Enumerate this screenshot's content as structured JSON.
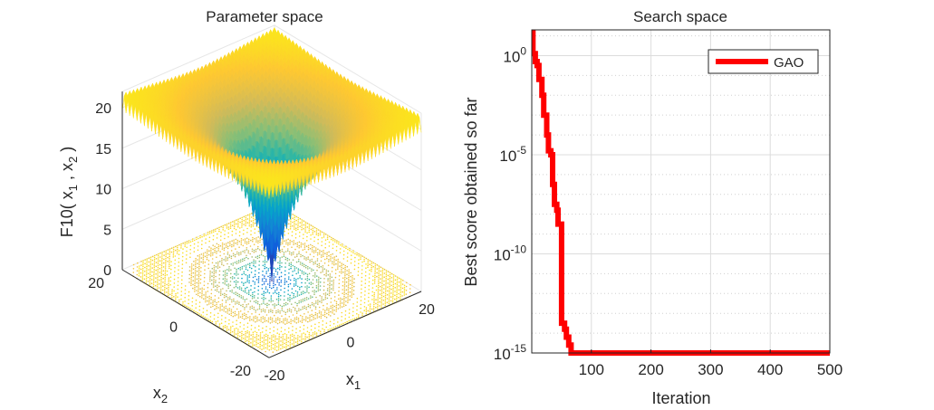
{
  "chart_data": [
    {
      "type": "surface",
      "title": "Parameter space",
      "function_name": "F10",
      "xlabel": "x_1",
      "ylabel": "x_2",
      "zlabel": "F10( x_1 , x_2 )",
      "xlim": [
        -20,
        20
      ],
      "ylim": [
        -20,
        20
      ],
      "zlim": [
        0,
        22
      ],
      "x_ticks": [
        "-20",
        "0",
        "20"
      ],
      "y_ticks": [
        "-20",
        "0",
        "20"
      ],
      "z_ticks": [
        "0",
        "5",
        "10",
        "15",
        "20"
      ],
      "contour_floor": true
    },
    {
      "type": "line",
      "title": "Search space",
      "xlabel": "Iteration",
      "ylabel": "Best score obtained so far",
      "yscale": "log",
      "xlim": [
        1,
        500
      ],
      "ylim_log10": [
        -15,
        1.3
      ],
      "x_ticks": [
        "100",
        "200",
        "300",
        "400",
        "500"
      ],
      "y_ticks": [
        {
          "exp": "0",
          "log": 0
        },
        {
          "exp": "-5",
          "log": -5
        },
        {
          "exp": "-10",
          "log": -10
        },
        {
          "exp": "-15",
          "log": -15
        }
      ],
      "grid": true,
      "legend_position": "top-right",
      "series": [
        {
          "name": "GAO",
          "color": "#ff0000",
          "iteration": [
            1,
            2,
            5,
            6,
            9,
            12,
            17,
            20,
            25,
            28,
            32,
            35,
            38,
            42,
            44,
            49,
            50,
            55,
            58,
            62,
            66,
            500
          ],
          "log10_value": [
            1.5,
            0.1,
            0.1,
            -0.3,
            -0.5,
            -1.2,
            -2.0,
            -3.0,
            -4.0,
            -4.8,
            -5.0,
            -6.5,
            -7.5,
            -7.8,
            -8.5,
            -8.5,
            -13.5,
            -13.8,
            -14.2,
            -14.6,
            -15.0,
            -15.0
          ]
        }
      ]
    }
  ]
}
